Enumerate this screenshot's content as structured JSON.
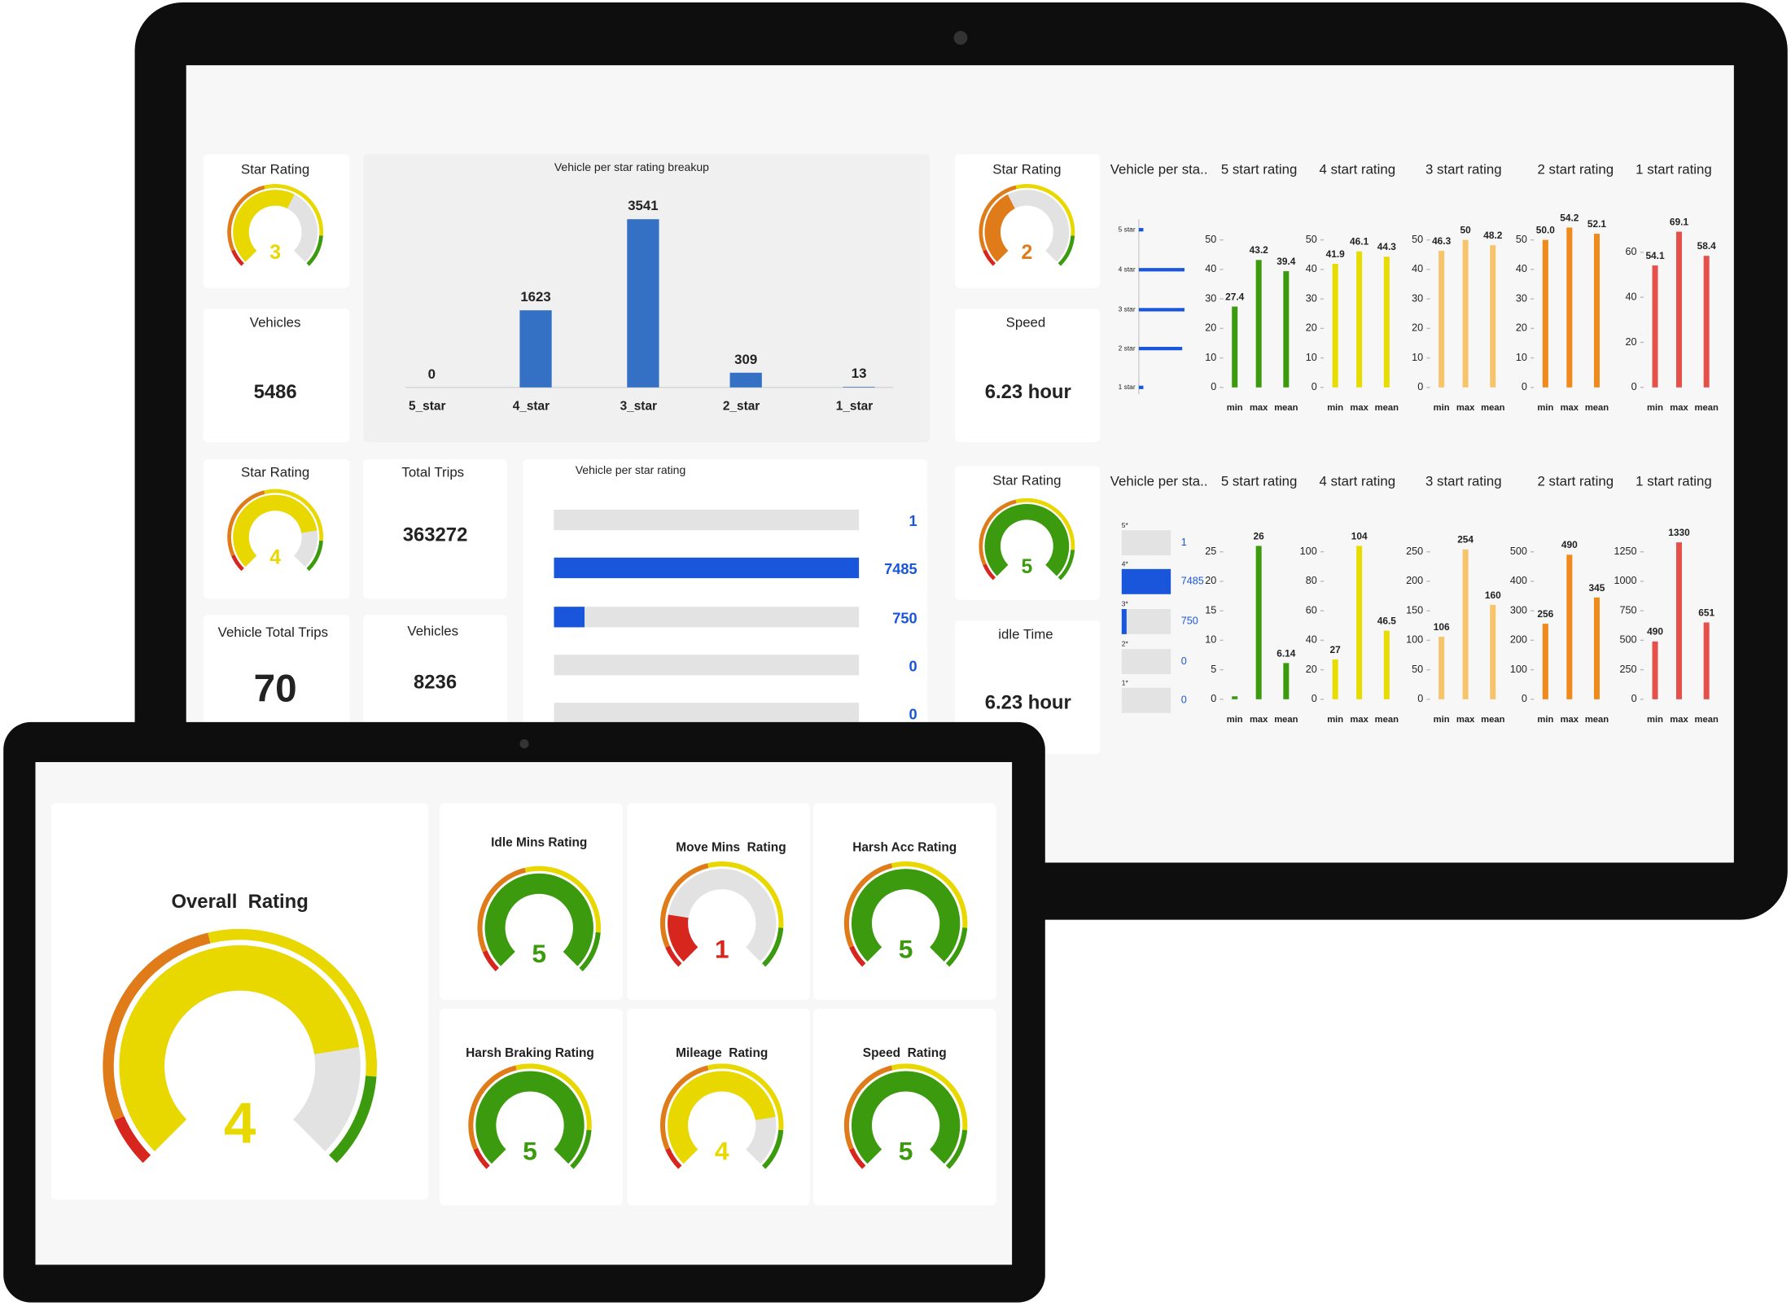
{
  "back_screen": {
    "gauges": [
      {
        "title": "Star Rating",
        "value": 3
      },
      {
        "title": "Star Rating",
        "value": 2
      },
      {
        "title": "Star Rating",
        "value": 4
      },
      {
        "title": "Star Rating",
        "value": 5
      }
    ],
    "stats": [
      {
        "title": "Vehicles",
        "value": 5486
      },
      {
        "title": "Speed",
        "value": "6.23 hour"
      },
      {
        "title": "Total Trips",
        "value": 363272
      },
      {
        "title": "Vehicle Total Trips",
        "value": 70
      },
      {
        "title": "Vehicles",
        "value": 8236
      },
      {
        "title": "idle Time",
        "value": "6.23 hour"
      }
    ],
    "breakup_chart": {
      "type": "bar",
      "title": "Vehicle per star rating breakup",
      "categories": [
        "5_star",
        "4_star",
        "3_star",
        "2_star",
        "1_star"
      ],
      "values": [
        0,
        1623,
        3541,
        309,
        13
      ],
      "color": "#3471c4",
      "ylim": [
        0,
        3800
      ]
    },
    "rating_bars": {
      "type": "bar",
      "orientation": "horizontal",
      "title": "Vehicle per star rating",
      "values": [
        1,
        7485,
        750,
        0,
        0
      ],
      "xlim": [
        0,
        7485
      ],
      "color": "#1a56db",
      "track_color": "#e3e3e3"
    },
    "panels": [
      {
        "headers": [
          "Vehicle per sta..",
          "5 start rating",
          "4 start rating",
          "3 start rating",
          "2 start rating",
          "1 start rating"
        ],
        "mini_bars": {
          "type": "bar",
          "orientation": "horizontal",
          "categories": [
            "5 star",
            "4 star",
            "3 star",
            "2 star",
            "1 star"
          ],
          "values": [
            10,
            100,
            100,
            95,
            10
          ],
          "xlim": [
            0,
            100
          ],
          "color": "#1a56db",
          "data_labels": false
        },
        "charts": [
          {
            "type": "bar",
            "categories": [
              "min",
              "max",
              "mean"
            ],
            "values": [
              27.4,
              43.2,
              39.4
            ],
            "color": "#3c9a0e",
            "ylim": [
              0,
              55
            ],
            "yticks": [
              0,
              10,
              20,
              30,
              40,
              50
            ]
          },
          {
            "type": "bar",
            "categories": [
              "min",
              "max",
              "mean"
            ],
            "values": [
              41.9,
              46.1,
              44.3
            ],
            "color": "#e6dc00",
            "ylim": [
              0,
              55
            ],
            "yticks": [
              0,
              10,
              20,
              30,
              40,
              50
            ]
          },
          {
            "type": "bar",
            "categories": [
              "min",
              "max",
              "mean"
            ],
            "values": [
              46.3,
              50,
              48.2
            ],
            "color": "#f7c46c",
            "ylim": [
              0,
              55
            ],
            "yticks": [
              0,
              10,
              20,
              30,
              40,
              50
            ]
          },
          {
            "type": "bar",
            "categories": [
              "min",
              "max",
              "mean"
            ],
            "values": [
              50,
              54.2,
              52.1
            ],
            "value_labels": [
              "50.0",
              "54.2",
              "52.1"
            ],
            "color": "#f08a1c",
            "ylim": [
              0,
              55
            ],
            "yticks": [
              0,
              10,
              20,
              30,
              40,
              50
            ]
          },
          {
            "type": "bar",
            "categories": [
              "min",
              "max",
              "mean"
            ],
            "values": [
              54.1,
              69.1,
              58.4
            ],
            "color": "#e5504a",
            "ylim": [
              0,
              72
            ],
            "yticks": [
              0,
              20,
              40,
              60
            ]
          }
        ]
      },
      {
        "headers": [
          "Vehicle per sta..",
          "5 start rating",
          "4 start rating",
          "3 start rating",
          "2 start rating",
          "1 start rating"
        ],
        "mini_bars": {
          "type": "bar",
          "orientation": "horizontal",
          "categories": [
            "5*",
            "4*",
            "3*",
            "2*",
            "1*"
          ],
          "values": [
            1,
            7485,
            750,
            0,
            0
          ],
          "xlim": [
            0,
            7485
          ],
          "color": "#1a56db",
          "data_labels": true
        },
        "charts": [
          {
            "type": "bar",
            "categories": [
              "min",
              "max",
              "mean"
            ],
            "values": [
              0.5,
              26,
              6.14
            ],
            "value_labels": [
              null,
              "26",
              "6.14"
            ],
            "color": "#3c9a0e",
            "ylim": [
              0,
              27.5
            ],
            "yticks": [
              0,
              5,
              10,
              15,
              20,
              25
            ]
          },
          {
            "type": "bar",
            "categories": [
              "min",
              "max",
              "mean"
            ],
            "values": [
              27,
              104,
              46.5
            ],
            "color": "#e6dc00",
            "ylim": [
              0,
              110
            ],
            "yticks": [
              0,
              20,
              40,
              60,
              80,
              100
            ]
          },
          {
            "type": "bar",
            "categories": [
              "min",
              "max",
              "mean"
            ],
            "values": [
              106,
              254,
              160
            ],
            "color": "#f7c46c",
            "ylim": [
              0,
              275
            ],
            "yticks": [
              0,
              50,
              100,
              150,
              200,
              250
            ]
          },
          {
            "type": "bar",
            "categories": [
              "min",
              "max",
              "mean"
            ],
            "values": [
              256,
              490,
              345
            ],
            "color": "#f08a1c",
            "ylim": [
              0,
              550
            ],
            "yticks": [
              0,
              100,
              200,
              300,
              400,
              500
            ]
          },
          {
            "type": "bar",
            "categories": [
              "min",
              "max",
              "mean"
            ],
            "values": [
              490,
              1330,
              651
            ],
            "color": "#e5504a",
            "ylim": [
              0,
              1375
            ],
            "yticks": [
              0,
              250,
              500,
              750,
              1000,
              1250
            ]
          }
        ]
      }
    ]
  },
  "front_screen": {
    "overall": {
      "title": "Overall  Rating",
      "value": 4
    },
    "gauges": [
      {
        "title": "Idle Mins Rating",
        "value": 5
      },
      {
        "title": "Move Mins  Rating",
        "value": 1
      },
      {
        "title": "Harsh Acc Rating",
        "value": 5
      },
      {
        "title": "Harsh Braking Rating",
        "value": 5
      },
      {
        "title": "Mileage  Rating",
        "value": 4
      },
      {
        "title": "Speed  Rating",
        "value": 5
      }
    ]
  },
  "gauge_scale": {
    "max": 5,
    "scale_colors": [
      "#d7261e",
      "#e07b1a",
      "#e8d800",
      "#3c9a0e"
    ],
    "rating_colors": [
      "#d7261e",
      "#e07b1a",
      "#e8d800",
      "#e8d800",
      "#3c9a0e"
    ],
    "track_color": "#e2e2e2"
  }
}
